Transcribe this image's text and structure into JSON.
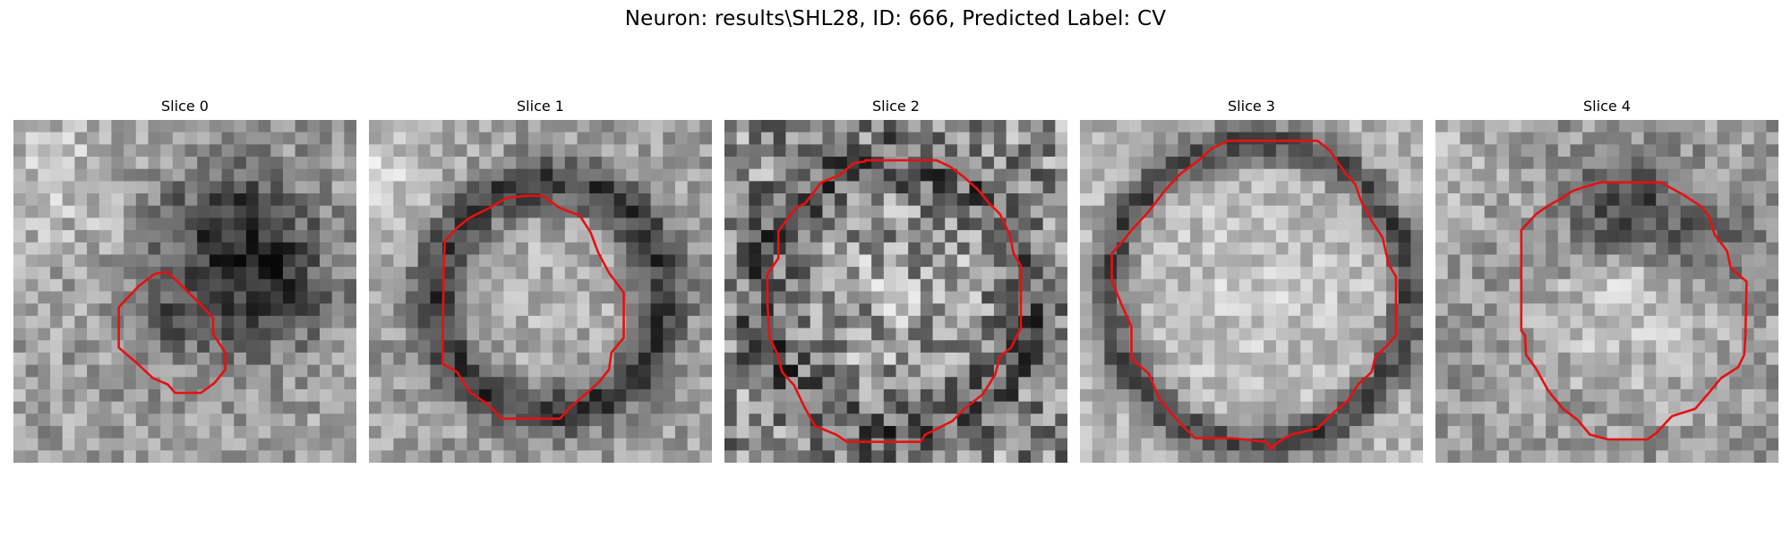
{
  "figure": {
    "title": "Neuron: results\\SHL28, ID: 666, Predicted Label: CV",
    "contour_color": "#e81010",
    "colormap": "grayscale"
  },
  "panels": [
    {
      "title": "Slice 0",
      "kind": "small blob left-center, dark region to the right"
    },
    {
      "title": "Slice 1",
      "kind": "ring with dark membrane"
    },
    {
      "title": "Slice 2",
      "kind": "large noisy ring"
    },
    {
      "title": "Slice 3",
      "kind": "bright disk with dark rim"
    },
    {
      "title": "Slice 4",
      "kind": "bright lower half, dark top crescent"
    }
  ]
}
